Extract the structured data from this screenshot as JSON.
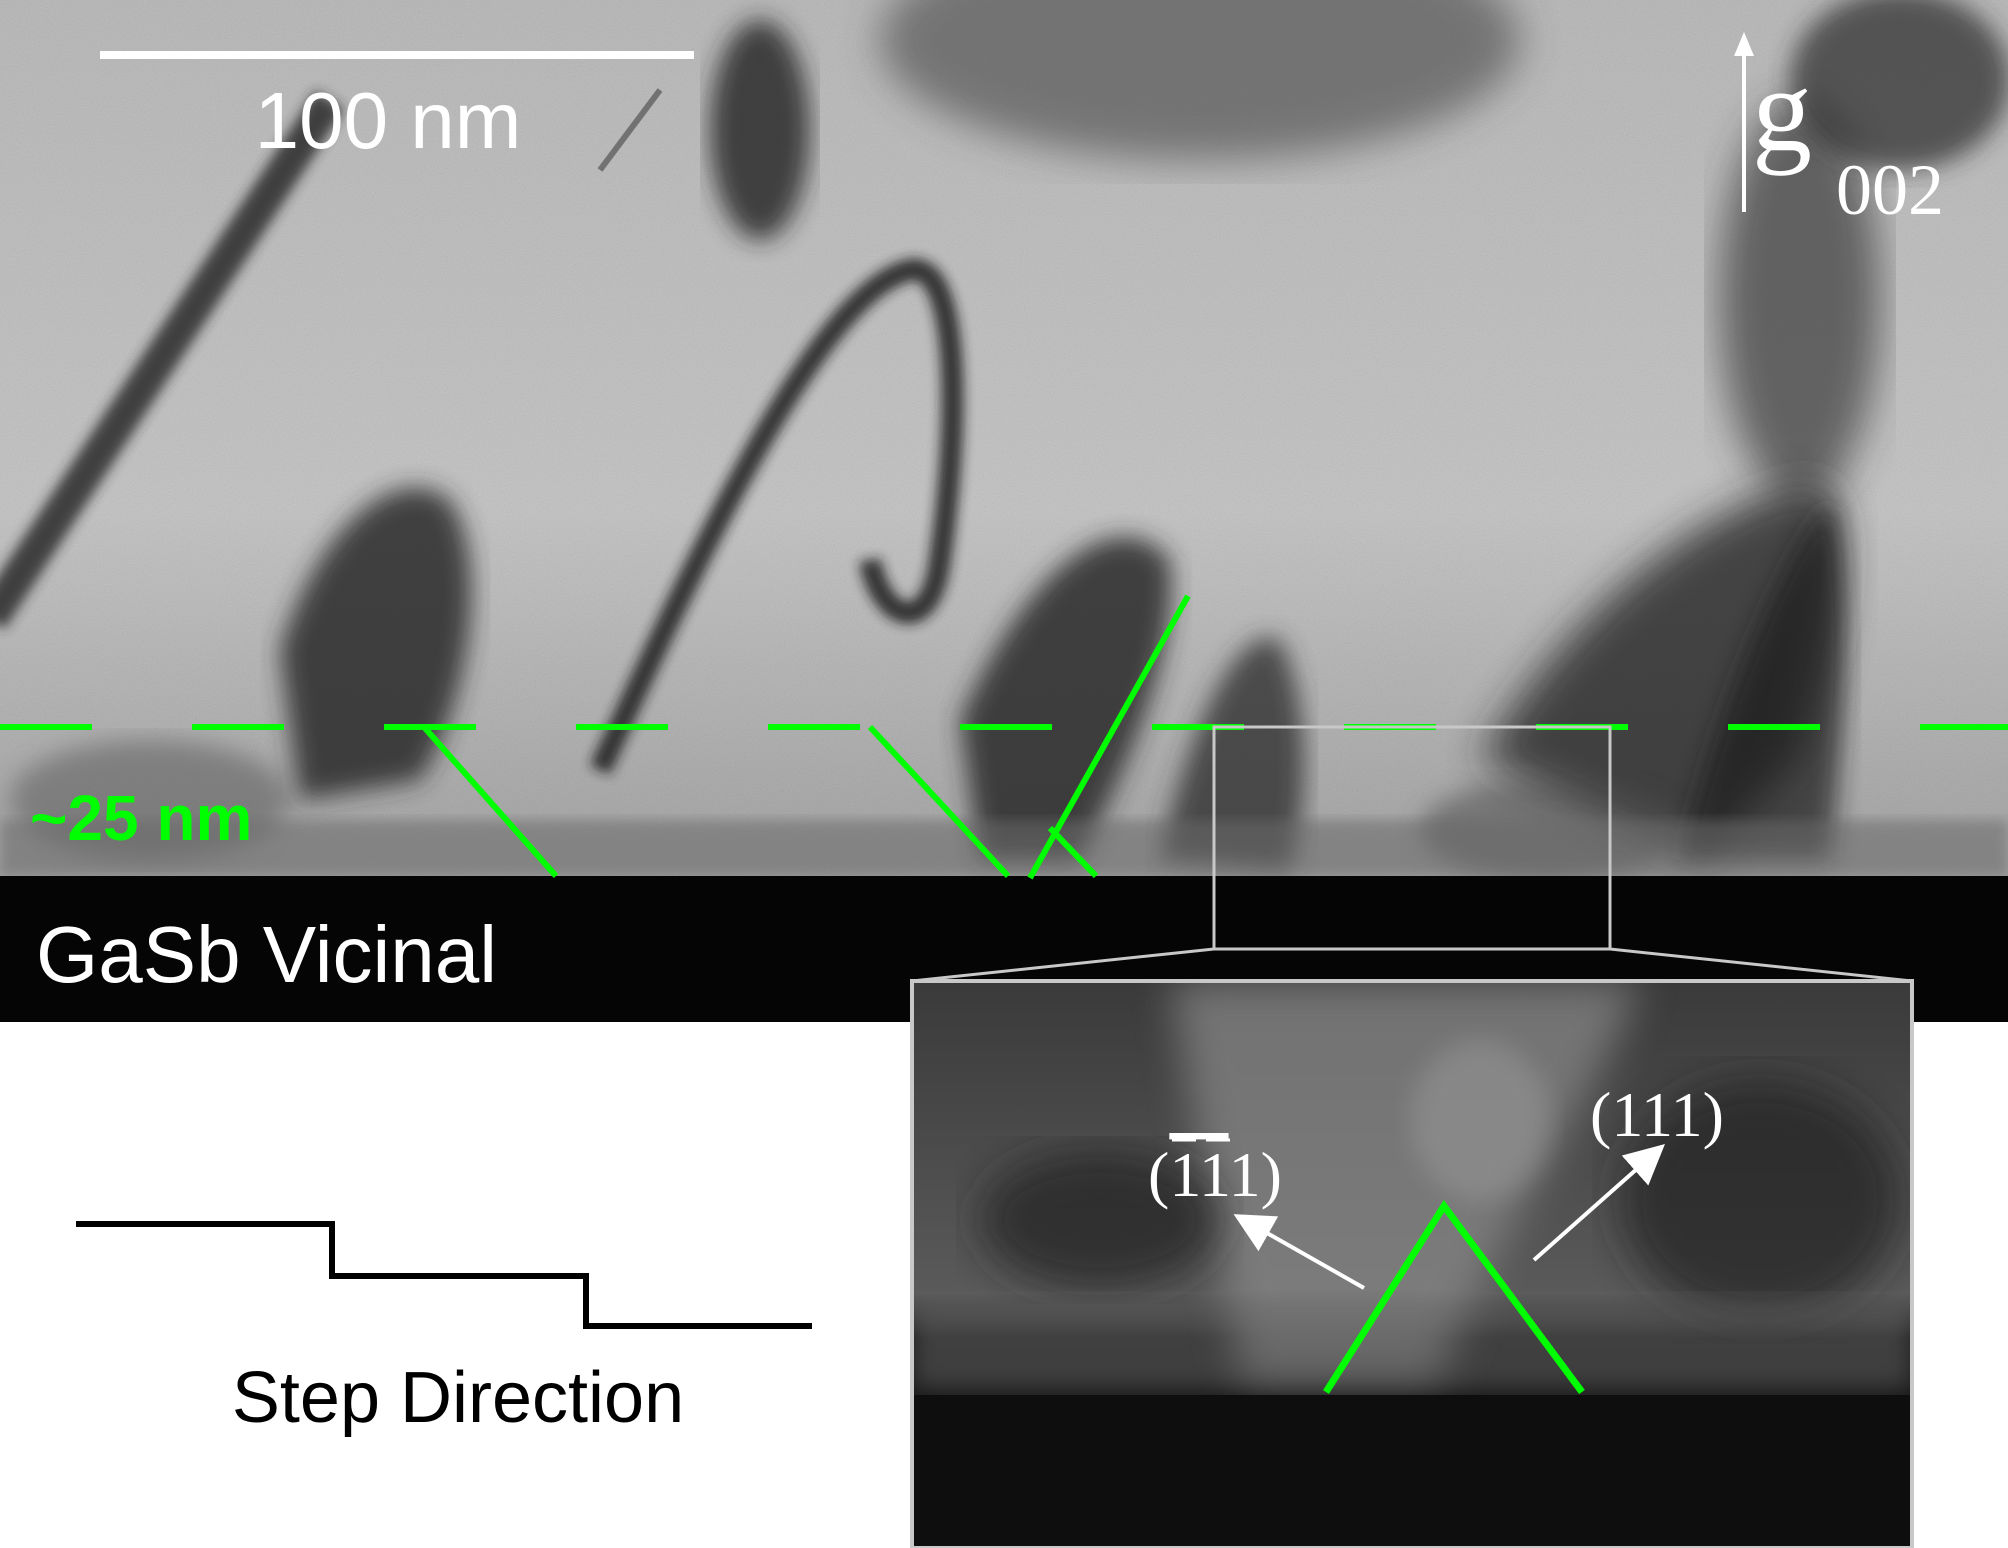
{
  "scale_bar": {
    "label": "100 nm"
  },
  "g_vector": {
    "symbol": "g",
    "subscript": "002"
  },
  "thickness_label": "~25 nm",
  "substrate_label": "GaSb Vicinal",
  "step_direction_label": "Step Direction",
  "inset": {
    "plane_left": "(¯1¯11)",
    "plane_left_parts": [
      "1",
      "1",
      "1"
    ],
    "plane_right": "(111)"
  },
  "colors": {
    "accent_green": "#00ff00",
    "overlay_white": "#ffffff",
    "substrate": "#050505",
    "inset_frame": "#c8c8c8"
  },
  "icons": [
    "up-arrow-icon",
    "step-profile-icon"
  ]
}
